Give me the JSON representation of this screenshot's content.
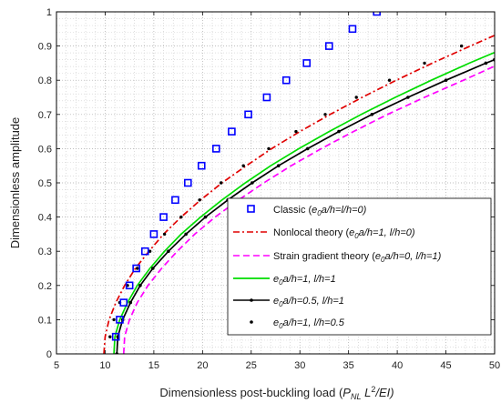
{
  "chart_data": {
    "type": "line",
    "xlabel": "Dimensionless post-buckling load (P_{NL} L^2/EI)",
    "xlabel_parts": {
      "prefix": "Dimensionless post-buckling load (",
      "P": "P",
      "NL": "NL",
      "L": " L",
      "sq": "2",
      "tail": "/EI)"
    },
    "ylabel": "Dimensionless amplitude",
    "xlim": [
      5,
      50
    ],
    "ylim": [
      0,
      1
    ],
    "xticks": [
      "5",
      "10",
      "15",
      "20",
      "25",
      "30",
      "35",
      "40",
      "45",
      "50"
    ],
    "yticks": [
      "0",
      "0.1",
      "0.2",
      "0.3",
      "0.4",
      "0.5",
      "0.6",
      "0.7",
      "0.8",
      "0.9",
      "1"
    ],
    "grid": "on (dotted, major and minor)",
    "legend_placement": "bottom-right",
    "amplitudes": [
      0,
      0.05,
      0.1,
      0.15,
      0.2,
      0.25,
      0.3,
      0.35,
      0.4,
      0.45,
      0.5,
      0.55,
      0.6,
      0.65,
      0.7,
      0.75,
      0.8,
      0.85,
      0.9,
      0.95,
      1.0
    ],
    "marker_amplitudes": [
      0.05,
      0.1,
      0.15,
      0.2,
      0.25,
      0.3,
      0.35,
      0.4,
      0.45,
      0.5,
      0.55,
      0.6,
      0.65,
      0.7,
      0.75,
      0.8,
      0.85,
      0.9,
      0.95,
      1.0
    ],
    "series": [
      {
        "name": "Classic (e0a/h=l/h=0)",
        "style": "marker",
        "color": "#0000ff",
        "legend": {
          "base": "Classic (",
          "e": "e",
          "sub": "0",
          "rest": "a/h=l/h=0)"
        },
        "points": [
          {
            "x": 11.1,
            "y": 0.05
          },
          {
            "x": 11.5,
            "y": 0.1
          },
          {
            "x": 11.9,
            "y": 0.15
          },
          {
            "x": 12.5,
            "y": 0.2
          },
          {
            "x": 13.2,
            "y": 0.25
          },
          {
            "x": 14.1,
            "y": 0.3
          },
          {
            "x": 15.0,
            "y": 0.35
          },
          {
            "x": 16.0,
            "y": 0.4
          },
          {
            "x": 17.2,
            "y": 0.45
          },
          {
            "x": 18.5,
            "y": 0.5
          },
          {
            "x": 19.9,
            "y": 0.55
          },
          {
            "x": 21.4,
            "y": 0.6
          },
          {
            "x": 23.0,
            "y": 0.65
          },
          {
            "x": 24.7,
            "y": 0.7
          },
          {
            "x": 26.6,
            "y": 0.75
          },
          {
            "x": 28.6,
            "y": 0.8
          },
          {
            "x": 30.7,
            "y": 0.85
          },
          {
            "x": 33.0,
            "y": 0.9
          },
          {
            "x": 35.4,
            "y": 0.95
          },
          {
            "x": 37.9,
            "y": 1.0
          }
        ]
      },
      {
        "name": "Nonlocal theory (e0a/h=1, l/h=0)",
        "style": "dash-dot",
        "color": "#e00000",
        "legend": {
          "base": "Nonlocal theory (",
          "e": "e",
          "sub": "0",
          "rest": "a/h=1, ",
          "l": "l",
          "tail": "/h=0)"
        },
        "x": [
          9.87,
          10.0,
          10.4,
          11.1,
          12.0,
          13.1,
          14.5,
          16.0,
          17.8,
          19.8,
          22.0,
          24.5,
          27.1,
          30.0,
          33.1,
          36.4,
          39.9,
          43.6,
          47.5,
          49.9,
          50.0
        ],
        "y": [
          0,
          0.05,
          0.1,
          0.15,
          0.2,
          0.25,
          0.3,
          0.35,
          0.4,
          0.45,
          0.5,
          0.55,
          0.6,
          0.65,
          0.7,
          0.75,
          0.8,
          0.85,
          0.9,
          0.93,
          0.93
        ]
      },
      {
        "name": "Strain gradient theory (e0a/h=0, l/h=1)",
        "style": "dashed",
        "color": "#ff00ff",
        "legend": {
          "base": "Strain gradient theory (",
          "e": "e",
          "sub": "0",
          "rest": "a/h=0, ",
          "l": "l",
          "tail": "/h=1)"
        },
        "x": [
          11.9,
          12.0,
          12.5,
          13.3,
          14.4,
          15.8,
          17.4,
          19.2,
          21.3,
          23.7,
          26.3,
          29.1,
          32.2,
          35.5,
          39.0,
          42.8,
          46.8,
          49.9,
          50.0,
          50.0,
          50.0
        ],
        "y": [
          0,
          0.05,
          0.1,
          0.15,
          0.2,
          0.25,
          0.3,
          0.35,
          0.4,
          0.45,
          0.5,
          0.55,
          0.6,
          0.65,
          0.7,
          0.75,
          0.8,
          0.84,
          0.84,
          0.84,
          0.84
        ]
      },
      {
        "name": "e0a/h=1, l/h=1",
        "style": "solid",
        "color": "#00dd00",
        "legend": {
          "e": "e",
          "sub": "0",
          "rest": "a/h=1, ",
          "l": "l",
          "tail": "/h=1"
        },
        "x": [
          10.9,
          11.0,
          11.5,
          12.3,
          13.3,
          14.6,
          16.1,
          17.8,
          19.8,
          22.0,
          24.4,
          27.0,
          29.9,
          33.0,
          36.3,
          39.8,
          43.5,
          47.4,
          49.9,
          50.0,
          50.0
        ],
        "y": [
          0,
          0.05,
          0.1,
          0.15,
          0.2,
          0.25,
          0.3,
          0.35,
          0.4,
          0.45,
          0.5,
          0.55,
          0.6,
          0.65,
          0.7,
          0.75,
          0.8,
          0.85,
          0.88,
          0.88,
          0.88
        ]
      },
      {
        "name": "e0a/h=0.5, l/h=1",
        "style": "solid-dot",
        "color": "#000000",
        "legend": {
          "e": "e",
          "sub": "0",
          "rest": "a/h=0.5, ",
          "l": "l",
          "tail": "/h=1"
        },
        "x": [
          11.2,
          11.3,
          11.8,
          12.6,
          13.6,
          14.9,
          16.5,
          18.3,
          20.3,
          22.6,
          25.1,
          27.8,
          30.8,
          34.0,
          37.4,
          41.1,
          45.0,
          49.1,
          50.0,
          50.0,
          50.0
        ],
        "y": [
          0,
          0.05,
          0.1,
          0.15,
          0.2,
          0.25,
          0.3,
          0.35,
          0.4,
          0.45,
          0.5,
          0.55,
          0.6,
          0.65,
          0.7,
          0.75,
          0.8,
          0.85,
          0.86,
          0.86,
          0.86
        ]
      },
      {
        "name": "e0a/h=1, l/h=0.5",
        "style": "dots",
        "color": "#000000",
        "legend": {
          "e": "e",
          "sub": "0",
          "rest": "a/h=1, ",
          "l": "l",
          "tail": "/h=0.5"
        },
        "points": [
          {
            "x": 10.5,
            "y": 0.05
          },
          {
            "x": 10.9,
            "y": 0.1
          },
          {
            "x": 11.5,
            "y": 0.15
          },
          {
            "x": 12.3,
            "y": 0.2
          },
          {
            "x": 13.3,
            "y": 0.25
          },
          {
            "x": 14.6,
            "y": 0.3
          },
          {
            "x": 16.1,
            "y": 0.35
          },
          {
            "x": 17.8,
            "y": 0.4
          },
          {
            "x": 19.7,
            "y": 0.45
          },
          {
            "x": 21.9,
            "y": 0.5
          },
          {
            "x": 24.2,
            "y": 0.55
          },
          {
            "x": 26.8,
            "y": 0.6
          },
          {
            "x": 29.6,
            "y": 0.65
          },
          {
            "x": 32.6,
            "y": 0.7
          },
          {
            "x": 35.8,
            "y": 0.75
          },
          {
            "x": 39.2,
            "y": 0.8
          },
          {
            "x": 42.8,
            "y": 0.85
          },
          {
            "x": 46.6,
            "y": 0.9
          }
        ]
      }
    ]
  }
}
